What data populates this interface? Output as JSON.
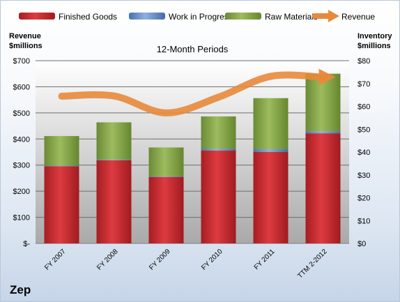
{
  "chart_data": {
    "type": "bar",
    "title": "12-Month Periods",
    "brand": "Zep",
    "categories": [
      "FY 2007",
      "FY 2008",
      "FY 2009",
      "FY 2010",
      "FY 2011",
      "TTM 2-2012"
    ],
    "left_axis": {
      "title_line1": "Revenue",
      "title_line2": "$millions",
      "ylim": [
        0,
        700
      ],
      "ticks": [
        {
          "value": 0,
          "label": "$-"
        },
        {
          "value": 100,
          "label": "$100"
        },
        {
          "value": 200,
          "label": "$200"
        },
        {
          "value": 300,
          "label": "$300"
        },
        {
          "value": 400,
          "label": "$400"
        },
        {
          "value": 500,
          "label": "$500"
        },
        {
          "value": 600,
          "label": "$600"
        },
        {
          "value": 700,
          "label": "$700"
        }
      ]
    },
    "right_axis": {
      "title_line1": "Inventory",
      "title_line2": "$millions",
      "ylim": [
        0,
        80
      ],
      "ticks": [
        {
          "value": 0,
          "label": "$0"
        },
        {
          "value": 10,
          "label": "$10"
        },
        {
          "value": 20,
          "label": "$20"
        },
        {
          "value": 30,
          "label": "$30"
        },
        {
          "value": 40,
          "label": "$40"
        },
        {
          "value": 50,
          "label": "$50"
        },
        {
          "value": 60,
          "label": "$60"
        },
        {
          "value": 70,
          "label": "$70"
        },
        {
          "value": 80,
          "label": "$80"
        }
      ]
    },
    "grid": true,
    "stacked": true,
    "legend_position": "top",
    "bar_series": [
      {
        "name": "Finished Goods",
        "color": "#c0272d",
        "axis": "right",
        "values": [
          33.8,
          36.4,
          29.1,
          40.6,
          40.0,
          48.2
        ]
      },
      {
        "name": "Work in Progress",
        "color": "#5b84c4",
        "axis": "right",
        "values": [
          0.3,
          0.3,
          0.3,
          0.8,
          1.2,
          0.9
        ]
      },
      {
        "name": "Raw Materials",
        "color": "#7a9c3e",
        "axis": "right",
        "values": [
          12.9,
          16.3,
          12.6,
          14.2,
          22.4,
          25.2
        ]
      }
    ],
    "line_series": [
      {
        "name": "Revenue",
        "color": "#e8893a",
        "axis": "left",
        "values": [
          564,
          565,
          500,
          560,
          640,
          637
        ]
      }
    ]
  }
}
